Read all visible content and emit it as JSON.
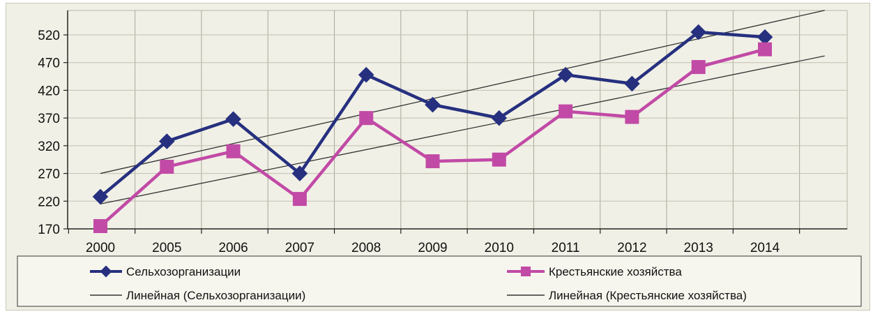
{
  "chart_data": {
    "type": "line",
    "categories": [
      "2000",
      "2005",
      "2006",
      "2007",
      "2008",
      "2009",
      "2010",
      "2011",
      "2012",
      "2013",
      "2014"
    ],
    "y_ticks": [
      "170",
      "220",
      "270",
      "320",
      "370",
      "420",
      "470",
      "520"
    ],
    "ylim": [
      170,
      520
    ],
    "grid": true,
    "legend_placement": "bottom",
    "series": [
      {
        "name": "Сельхозорганизации",
        "values": [
          228,
          328,
          368,
          270,
          448,
          394,
          370,
          448,
          432,
          525,
          516
        ],
        "color": "#26307f",
        "marker": "diamond"
      },
      {
        "name": "Крестьянские хозяйства",
        "values": [
          175,
          282,
          310,
          224,
          370,
          292,
          295,
          382,
          372,
          462,
          494
        ],
        "color": "#c14aa6",
        "marker": "square"
      }
    ],
    "trendlines": [
      {
        "name": "Линейная (Сельхозорганизации)",
        "color": "#333333",
        "start": 270,
        "slope": 27
      },
      {
        "name": "Линейная (Крестьянские хозяйства)",
        "color": "#333333",
        "start": 215,
        "slope": 24.5
      }
    ]
  }
}
